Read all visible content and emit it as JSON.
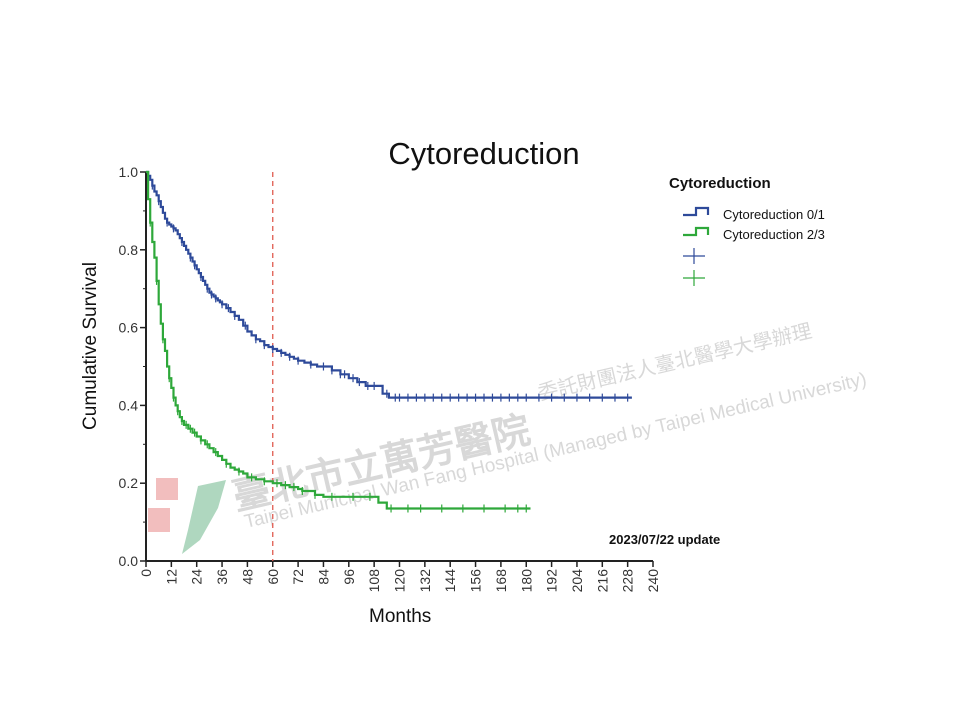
{
  "chart_data": {
    "type": "line",
    "title": "Cytoreduction",
    "xlabel": "Months",
    "ylabel": "Cumulative Survival",
    "xlim": [
      0,
      240
    ],
    "ylim": [
      0,
      1.0
    ],
    "x_ticks": [
      0,
      12,
      24,
      36,
      48,
      60,
      72,
      84,
      96,
      108,
      120,
      132,
      144,
      156,
      168,
      180,
      192,
      204,
      216,
      228,
      240
    ],
    "x_tick_labels": [
      "0",
      "12",
      "24",
      "36",
      "48",
      "60",
      "72",
      "84",
      "96",
      "108",
      "120",
      "132",
      "144",
      "156",
      "168",
      "180",
      "192",
      "204",
      "216",
      "228",
      "240"
    ],
    "y_ticks": [
      0.0,
      0.2,
      0.4,
      0.6,
      0.8,
      1.0
    ],
    "y_tick_labels": [
      "0.0",
      "0.2",
      "0.4",
      "0.6",
      "0.8",
      "1.0"
    ],
    "reference_line_x": 60,
    "legend_title": "Cytoreduction",
    "legend_position": "top-right",
    "series": [
      {
        "name": "Cytoreduction 0/1",
        "color": "#2e4a9a",
        "x": [
          0,
          1,
          2,
          3,
          4,
          5,
          6,
          7,
          8,
          9,
          10,
          11,
          12,
          13,
          14,
          15,
          16,
          17,
          18,
          19,
          20,
          21,
          22,
          23,
          24,
          25,
          26,
          27,
          28,
          29,
          30,
          31,
          32,
          33,
          34,
          35,
          36,
          38,
          40,
          42,
          44,
          46,
          48,
          50,
          52,
          54,
          56,
          58,
          60,
          62,
          64,
          66,
          68,
          70,
          72,
          75,
          78,
          81,
          84,
          88,
          92,
          96,
          100,
          104,
          108,
          112,
          115,
          118,
          130,
          150,
          180,
          210,
          230
        ],
        "y": [
          1.0,
          0.99,
          0.98,
          0.965,
          0.95,
          0.94,
          0.925,
          0.91,
          0.895,
          0.88,
          0.87,
          0.865,
          0.86,
          0.855,
          0.85,
          0.84,
          0.83,
          0.82,
          0.81,
          0.8,
          0.79,
          0.78,
          0.77,
          0.76,
          0.75,
          0.74,
          0.73,
          0.72,
          0.71,
          0.7,
          0.69,
          0.685,
          0.68,
          0.675,
          0.67,
          0.665,
          0.66,
          0.65,
          0.64,
          0.63,
          0.62,
          0.605,
          0.59,
          0.58,
          0.57,
          0.565,
          0.555,
          0.55,
          0.545,
          0.54,
          0.535,
          0.53,
          0.525,
          0.52,
          0.515,
          0.51,
          0.505,
          0.5,
          0.5,
          0.49,
          0.48,
          0.47,
          0.46,
          0.45,
          0.45,
          0.43,
          0.42,
          0.42,
          0.42,
          0.42,
          0.42,
          0.42,
          0.42
        ],
        "censor_x": [
          3,
          6,
          10,
          13,
          17,
          21,
          23,
          26,
          29,
          31,
          33,
          36,
          39,
          42,
          47,
          52,
          56,
          60,
          64,
          68,
          72,
          78,
          84,
          88,
          92,
          94,
          98,
          101,
          105,
          108,
          114,
          118,
          120,
          124,
          128,
          132,
          136,
          140,
          144,
          148,
          152,
          156,
          160,
          164,
          168,
          172,
          176,
          180,
          186,
          192,
          198,
          204,
          210,
          216,
          222,
          228
        ]
      },
      {
        "name": "Cytoreduction 2/3",
        "color": "#2ea83a",
        "x": [
          0,
          1,
          2,
          3,
          4,
          5,
          6,
          7,
          8,
          9,
          10,
          11,
          12,
          13,
          14,
          15,
          16,
          17,
          18,
          20,
          22,
          24,
          26,
          28,
          30,
          32,
          34,
          36,
          38,
          40,
          42,
          44,
          46,
          48,
          52,
          56,
          60,
          64,
          68,
          72,
          74,
          80,
          84,
          90,
          96,
          100,
          110,
          114,
          130,
          150,
          170,
          182
        ],
        "y": [
          1.0,
          0.93,
          0.87,
          0.82,
          0.78,
          0.72,
          0.66,
          0.61,
          0.57,
          0.54,
          0.5,
          0.47,
          0.445,
          0.42,
          0.4,
          0.385,
          0.37,
          0.36,
          0.35,
          0.34,
          0.33,
          0.32,
          0.31,
          0.3,
          0.29,
          0.28,
          0.27,
          0.26,
          0.25,
          0.24,
          0.235,
          0.23,
          0.225,
          0.215,
          0.21,
          0.205,
          0.2,
          0.195,
          0.19,
          0.185,
          0.18,
          0.17,
          0.165,
          0.165,
          0.165,
          0.165,
          0.15,
          0.135,
          0.135,
          0.135,
          0.135,
          0.135
        ],
        "censor_x": [
          2,
          5,
          8,
          11,
          13,
          15,
          17,
          19,
          21,
          23,
          26,
          29,
          33,
          38,
          44,
          50,
          56,
          62,
          66,
          70,
          74,
          80,
          88,
          98,
          106,
          116,
          124,
          130,
          140,
          150,
          160,
          170,
          176,
          180
        ]
      }
    ]
  },
  "watermark": {
    "chinese_name": "臺北市立萬芳醫院",
    "english_name": "Taipei Municipal Wan Fang Hospital (Managed by Taipei Medical University)",
    "chinese_sub": "委託財團法人臺北醫學大學辦理"
  },
  "update_note": "2023/07/22 update"
}
